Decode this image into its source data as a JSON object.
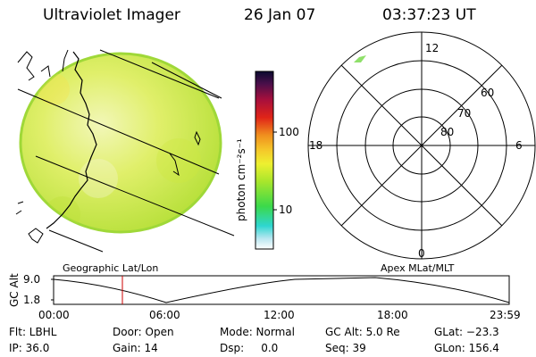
{
  "header": {
    "instrument": "Ultraviolet Imager",
    "date": "26 Jan 07",
    "time": "03:37:23 UT"
  },
  "colorbar": {
    "unit_label": "photon cm⁻²s⁻¹",
    "ticks": [
      "100",
      "10"
    ]
  },
  "polar": {
    "mlt_labels": {
      "top": "12",
      "left": "18",
      "right": "6",
      "bottom": "0"
    },
    "lat_labels": [
      "60",
      "70",
      "80"
    ]
  },
  "panel_labels": {
    "left": "Geographic Lat/Lon",
    "right": "Apex MLat/MLT"
  },
  "altitude_plot": {
    "ylabel": "GC Alt",
    "y_ticks": [
      "9.0",
      "1.8"
    ],
    "x_ticks": [
      "00:00",
      "06:00",
      "12:00",
      "18:00",
      "23:59"
    ],
    "current_time_hours": 3.62
  },
  "status": {
    "filter": "Flt: LBHL",
    "ip": "IP: 36.0",
    "door": "Door: Open",
    "gain": "Gain: 14",
    "mode": "Mode: Normal",
    "dsp": "Dsp:     0.0",
    "gc_alt": "GC Alt: 5.0 Re",
    "seq": "Seq: 39",
    "glat": "GLat: −23.3",
    "glon": "GLon: 156.4"
  },
  "colors": {
    "accent": "#cc0000",
    "aurora": "#c8e632"
  }
}
